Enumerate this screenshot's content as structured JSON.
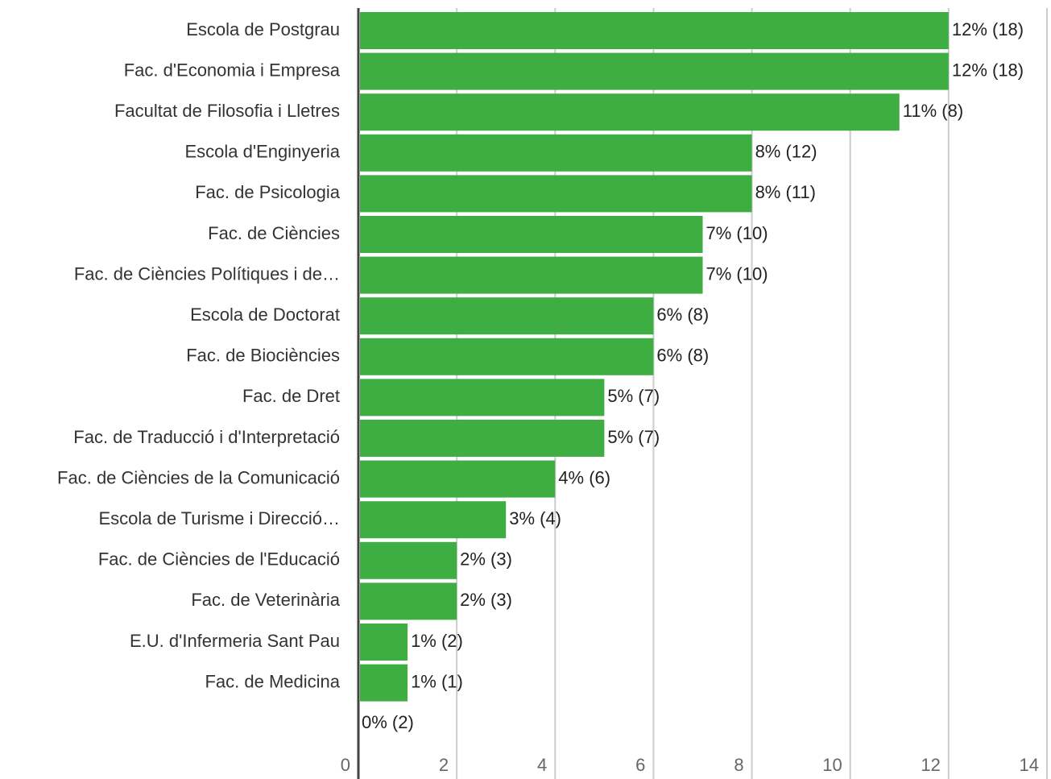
{
  "chart_data": {
    "type": "hbar",
    "categories": [
      "Escola de Postgrau",
      "Fac. d'Economia i Empresa",
      "Facultat de Filosofia i Lletres",
      "Escola d'Enginyeria",
      "Fac. de Psicologia",
      "Fac. de Ciències",
      "Fac. de Ciències Polítiques i de…",
      "Escola de Doctorat",
      "Fac. de Biociències",
      "Fac. de Dret",
      "Fac. de Traducció i d'Interpretació",
      "Fac. de Ciències de la Comunicació",
      "Escola de Turisme i Direcció…",
      "Fac. de Ciències de l'Educació",
      "Fac. de Veterinària",
      "E.U. d'Infermeria Sant Pau",
      "Fac. de Medicina",
      null
    ],
    "values": [
      12,
      12,
      11,
      8,
      8,
      7,
      7,
      6,
      6,
      5,
      5,
      4,
      3,
      2,
      2,
      1,
      1,
      0
    ],
    "value_labels": [
      "12% (18)",
      "12% (18)",
      "11% (8)",
      "8% (12)",
      "8% (11)",
      "7% (10)",
      "7% (10)",
      "6% (8)",
      "6% (8)",
      "5% (7)",
      "5% (7)",
      "4% (6)",
      "3% (4)",
      "2% (3)",
      "2% (3)",
      "1% (2)",
      "1% (1)",
      "0% (2)"
    ],
    "color": "#3fae42",
    "xlim": [
      0,
      14
    ],
    "xticks": [
      0,
      2,
      4,
      6,
      8,
      10,
      12,
      14
    ],
    "grid": true
  }
}
